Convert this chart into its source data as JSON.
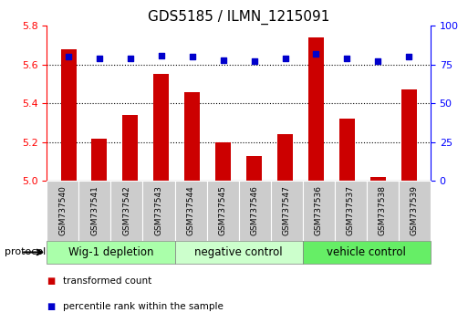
{
  "title": "GDS5185 / ILMN_1215091",
  "samples": [
    "GSM737540",
    "GSM737541",
    "GSM737542",
    "GSM737543",
    "GSM737544",
    "GSM737545",
    "GSM737546",
    "GSM737547",
    "GSM737536",
    "GSM737537",
    "GSM737538",
    "GSM737539"
  ],
  "transformed_counts": [
    5.68,
    5.22,
    5.34,
    5.55,
    5.46,
    5.2,
    5.13,
    5.24,
    5.74,
    5.32,
    5.02,
    5.47
  ],
  "percentile_ranks": [
    80,
    79,
    79,
    81,
    80,
    78,
    77,
    79,
    82,
    79,
    77,
    80
  ],
  "groups": [
    {
      "label": "Wig-1 depletion",
      "start": 0,
      "end": 4,
      "color": "#aaffaa"
    },
    {
      "label": "negative control",
      "start": 4,
      "end": 8,
      "color": "#ccffcc"
    },
    {
      "label": "vehicle control",
      "start": 8,
      "end": 12,
      "color": "#66ee66"
    }
  ],
  "ylim_left": [
    5.0,
    5.8
  ],
  "ylim_right": [
    0,
    100
  ],
  "yticks_left": [
    5.0,
    5.2,
    5.4,
    5.6,
    5.8
  ],
  "yticks_right": [
    0,
    25,
    50,
    75,
    100
  ],
  "bar_color": "#cc0000",
  "dot_color": "#0000cc",
  "bar_width": 0.5,
  "legend_items": [
    {
      "label": "transformed count",
      "color": "#cc0000"
    },
    {
      "label": "percentile rank within the sample",
      "color": "#0000cc"
    }
  ],
  "protocol_label": "protocol",
  "title_fontsize": 11,
  "tick_fontsize": 8,
  "group_label_fontsize": 8.5,
  "sample_fontsize": 6.5
}
